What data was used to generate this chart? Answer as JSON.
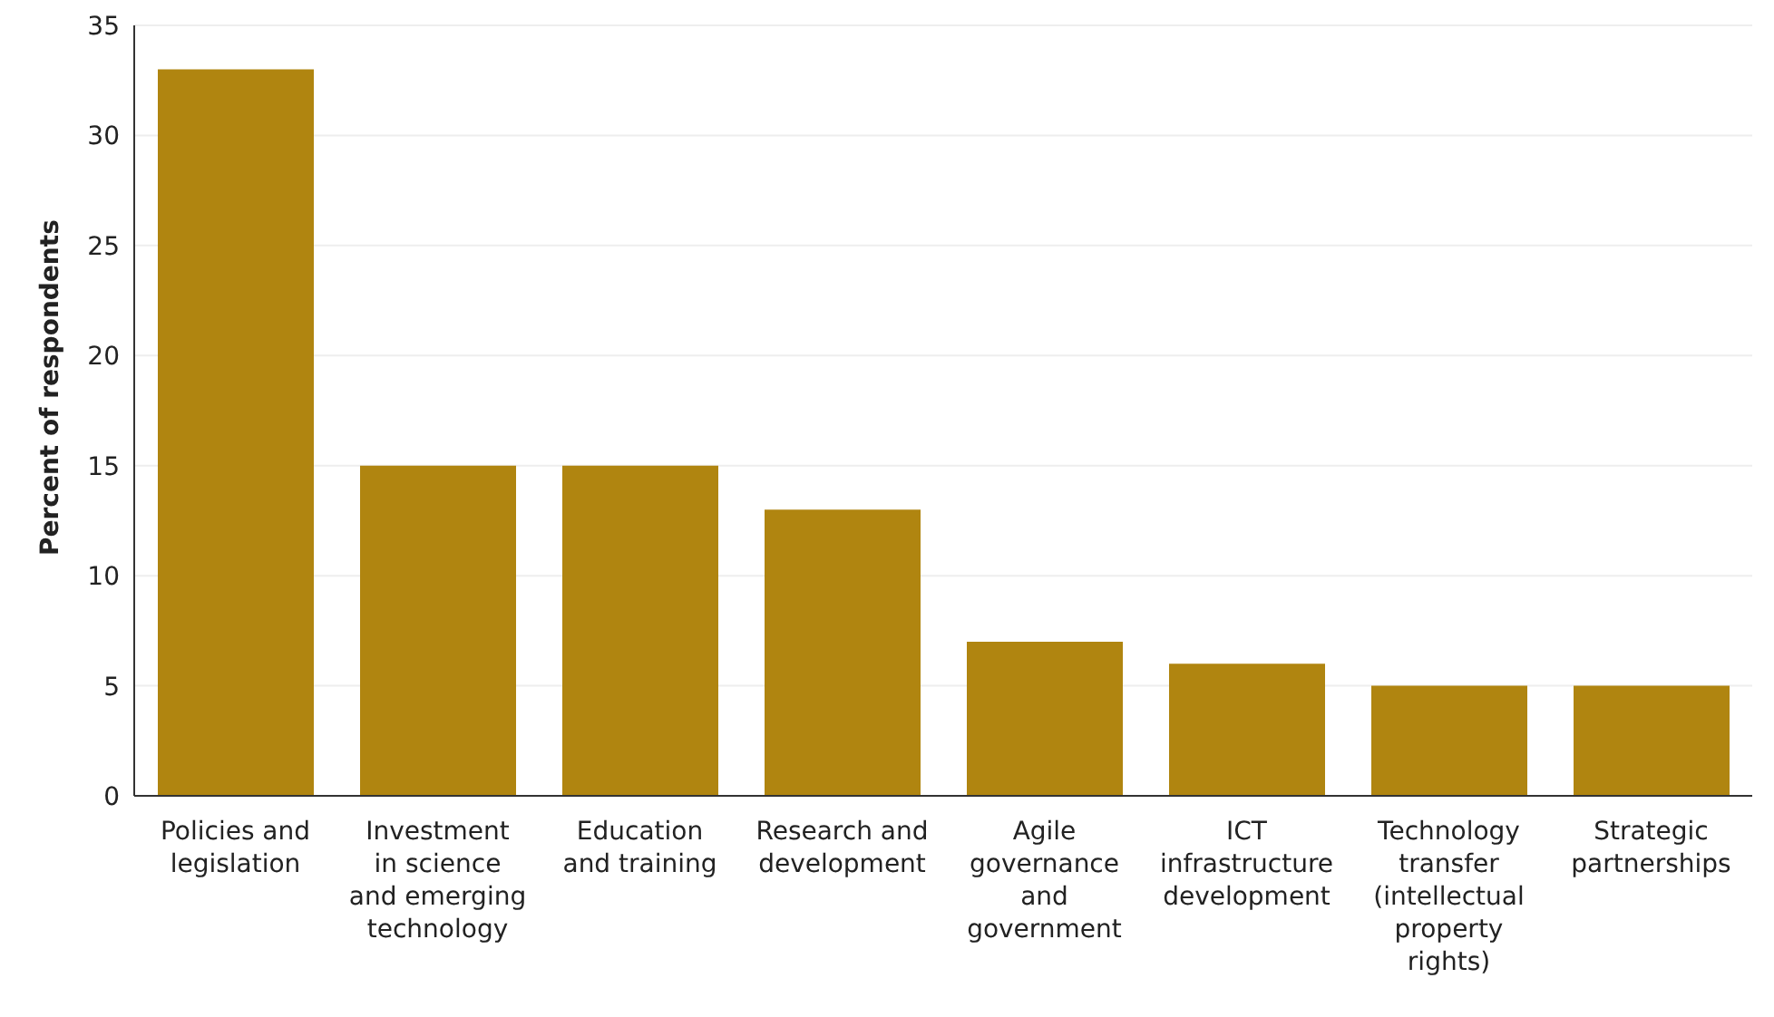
{
  "chart_data": {
    "type": "bar",
    "ylabel": "Percent of respondents",
    "categories": [
      "Policies and legislation",
      "Investment in science and emerging technology",
      "Education and training",
      "Research and development",
      "Agile governance and government",
      "ICT infrastructure development",
      "Technology transfer (intellectual property rights)",
      "Strategic partnerships"
    ],
    "values": [
      33,
      15,
      15,
      13,
      7,
      6,
      5,
      5
    ],
    "color": "#b08510",
    "ylim": [
      0,
      35
    ],
    "yticks": [
      0,
      5,
      10,
      15,
      20,
      25,
      30,
      35
    ],
    "grid": "y"
  }
}
